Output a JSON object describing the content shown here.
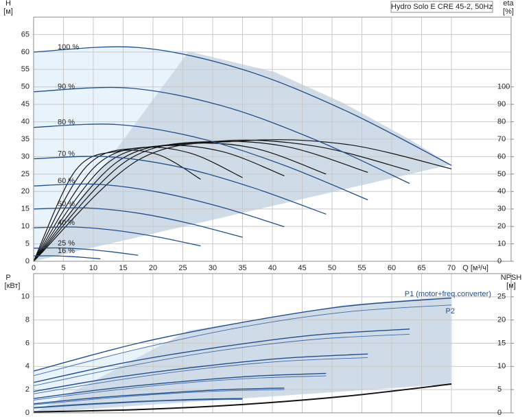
{
  "chart_data": [
    {
      "type": "line",
      "title": "Hydro Solo E CRE 45-2, 50Hz",
      "ylabel": "H",
      "yunit": "[м]",
      "y2label": "eta",
      "y2unit": "[%]",
      "xlabel": "Q [м³/ч]",
      "xlim": [
        0,
        80
      ],
      "xticks": [
        0,
        5,
        10,
        15,
        20,
        25,
        30,
        35,
        40,
        45,
        50,
        55,
        60,
        65,
        70
      ],
      "ylim": [
        0,
        70
      ],
      "yticks": [
        0,
        5,
        10,
        15,
        20,
        25,
        30,
        35,
        40,
        45,
        50,
        55,
        60,
        65
      ],
      "y2lim": [
        0,
        140
      ],
      "y2ticks": [
        0,
        10,
        20,
        30,
        40,
        50,
        60,
        70,
        80,
        90,
        100
      ],
      "grid": true,
      "series": [
        {
          "name": "100 %",
          "color": "#1f4e8c",
          "x": [
            0,
            17.5,
            35,
            52.5,
            70
          ],
          "values": [
            60,
            61.3,
            55,
            43,
            27.5
          ]
        },
        {
          "name": "90 %",
          "color": "#1f4e8c",
          "x": [
            0,
            15.75,
            31.5,
            47.25,
            63
          ],
          "values": [
            48.6,
            49.7,
            44.6,
            34.8,
            22.3
          ]
        },
        {
          "name": "80 %",
          "color": "#1f4e8c",
          "x": [
            0,
            14,
            28,
            42,
            56
          ],
          "values": [
            38.4,
            39.2,
            35.2,
            27.5,
            17.6
          ]
        },
        {
          "name": "70 %",
          "color": "#1f4e8c",
          "x": [
            0,
            12.25,
            24.5,
            36.75,
            49
          ],
          "values": [
            29.4,
            30.0,
            27.0,
            21.1,
            13.5
          ]
        },
        {
          "name": "60 %",
          "color": "#1f4e8c",
          "x": [
            0,
            10.5,
            21,
            31.5,
            42
          ],
          "values": [
            21.6,
            22.1,
            19.8,
            15.5,
            9.9
          ]
        },
        {
          "name": "50 %",
          "color": "#1f4e8c",
          "x": [
            0,
            8.75,
            17.5,
            26.25,
            35
          ],
          "values": [
            15,
            15.3,
            13.8,
            10.8,
            6.9
          ]
        },
        {
          "name": "40 %",
          "color": "#1f4e8c",
          "x": [
            0,
            7,
            14,
            21,
            28
          ],
          "values": [
            9.6,
            9.8,
            8.8,
            6.9,
            4.4
          ]
        },
        {
          "name": "25 %",
          "color": "#1f4e8c",
          "x": [
            0,
            4.38,
            8.75,
            13.13,
            17.5
          ],
          "values": [
            3.75,
            3.83,
            3.44,
            2.69,
            1.72
          ]
        },
        {
          "name": "16 %",
          "color": "#1f4e8c",
          "x": [
            0,
            2.8,
            5.6,
            8.4,
            11.2
          ],
          "values": [
            1.54,
            1.57,
            1.41,
            1.1,
            0.7
          ]
        }
      ],
      "eta_series": [
        {
          "axis": "y2",
          "color": "#111111",
          "x": [
            0,
            17.5,
            35,
            52.5,
            70
          ],
          "values": [
            0,
            58,
            69,
            67,
            53
          ]
        },
        {
          "axis": "y2",
          "color": "#111111",
          "x": [
            0,
            15.75,
            31.5,
            47.25,
            63
          ],
          "values": [
            0,
            58,
            69,
            66,
            52
          ]
        },
        {
          "axis": "y2",
          "color": "#111111",
          "x": [
            0,
            14,
            28,
            42,
            56
          ],
          "values": [
            0,
            57,
            68,
            66,
            51
          ]
        },
        {
          "axis": "y2",
          "color": "#111111",
          "x": [
            0,
            12.25,
            24.5,
            36.75,
            49
          ],
          "values": [
            0,
            56,
            67,
            65,
            50
          ]
        },
        {
          "axis": "y2",
          "color": "#111111",
          "x": [
            0,
            10.5,
            21,
            31.5,
            42
          ],
          "values": [
            0,
            55,
            66,
            63,
            49
          ]
        },
        {
          "axis": "y2",
          "color": "#111111",
          "x": [
            0,
            8.75,
            17.5,
            26.25,
            35
          ],
          "values": [
            0,
            54,
            65,
            62,
            48
          ]
        },
        {
          "axis": "y2",
          "color": "#111111",
          "x": [
            0,
            7,
            14,
            21,
            28
          ],
          "values": [
            0,
            52,
            63,
            61,
            47
          ]
        }
      ]
    },
    {
      "type": "line",
      "ylabel": "P",
      "yunit": "[кВт]",
      "y2label": "NPSH",
      "y2unit": "[м]",
      "xlim": [
        0,
        80
      ],
      "xticks": [
        0,
        5,
        10,
        15,
        20,
        25,
        30,
        35,
        40,
        45,
        50,
        55,
        60,
        65,
        70
      ],
      "ylim": [
        0,
        12
      ],
      "yticks": [
        0,
        2,
        4,
        6,
        8,
        10
      ],
      "y2lim": [
        0,
        30
      ],
      "y2ticks": [
        0,
        5,
        10,
        15,
        20,
        25
      ],
      "grid": true,
      "series": [
        {
          "name": "P1 (motor+freq.converter)",
          "color": "#1f4e8c",
          "curves": [
            {
              "x": [
                0,
                17.5,
                35,
                52.5,
                70
              ],
              "values": [
                3.6,
                6.0,
                7.8,
                9.2,
                9.9
              ]
            },
            {
              "x": [
                0,
                15.75,
                31.5,
                47.25,
                63
              ],
              "values": [
                2.62,
                4.37,
                5.69,
                6.71,
                7.22
              ]
            },
            {
              "x": [
                0,
                14,
                28,
                42,
                56
              ],
              "values": [
                1.84,
                3.07,
                3.99,
                4.71,
                5.07
              ]
            },
            {
              "x": [
                0,
                12.25,
                24.5,
                36.75,
                49
              ],
              "values": [
                1.23,
                2.06,
                2.68,
                3.16,
                3.4
              ]
            },
            {
              "x": [
                0,
                10.5,
                21,
                31.5,
                42
              ],
              "values": [
                0.78,
                1.3,
                1.68,
                1.99,
                2.14
              ]
            },
            {
              "x": [
                0,
                8.75,
                17.5,
                26.25,
                35
              ],
              "values": [
                0.45,
                0.75,
                0.98,
                1.15,
                1.24
              ]
            }
          ]
        },
        {
          "name": "P2",
          "color": "#3a6aa8",
          "curves": [
            {
              "x": [
                0,
                17.5,
                35,
                52.5,
                70
              ],
              "values": [
                3.2,
                5.5,
                7.4,
                8.7,
                9.3
              ]
            },
            {
              "x": [
                0,
                15.75,
                31.5,
                47.25,
                63
              ],
              "values": [
                2.33,
                4.01,
                5.39,
                6.34,
                6.78
              ]
            },
            {
              "x": [
                0,
                14,
                28,
                42,
                56
              ],
              "values": [
                1.64,
                2.82,
                3.79,
                4.45,
                4.76
              ]
            },
            {
              "x": [
                0,
                12.25,
                24.5,
                36.75,
                49
              ],
              "values": [
                1.1,
                1.89,
                2.54,
                2.98,
                3.19
              ]
            },
            {
              "x": [
                0,
                10.5,
                21,
                31.5,
                42
              ],
              "values": [
                0.69,
                1.19,
                1.6,
                1.88,
                2.01
              ]
            },
            {
              "x": [
                0,
                8.75,
                17.5,
                26.25,
                35
              ],
              "values": [
                0.4,
                0.69,
                0.93,
                1.09,
                1.16
              ]
            }
          ]
        }
      ],
      "npsh": {
        "axis": "y2",
        "color": "#111111",
        "x": [
          0,
          17.5,
          35,
          52.5,
          70
        ],
        "values": [
          0.2,
          0.7,
          1.8,
          3.6,
          6.2
        ]
      }
    }
  ]
}
